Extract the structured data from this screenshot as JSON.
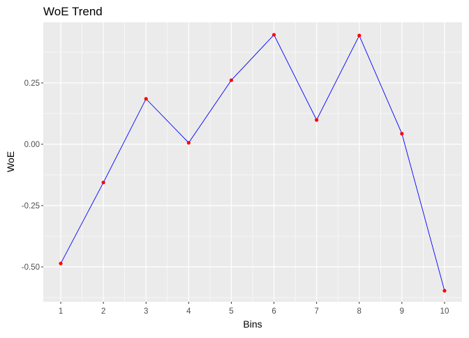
{
  "chart_data": {
    "type": "line",
    "title": "WoE Trend",
    "xlabel": "Bins",
    "ylabel": "WoE",
    "x": [
      1,
      2,
      3,
      4,
      5,
      6,
      7,
      8,
      9,
      10
    ],
    "x_tick_labels": [
      "1",
      "2",
      "3",
      "4",
      "5",
      "6",
      "7",
      "8",
      "9",
      "10"
    ],
    "y_ticks": [
      0.25,
      0.0,
      -0.25,
      -0.5
    ],
    "y_tick_labels": [
      "0.25",
      "0.00",
      "-0.25",
      "-0.50"
    ],
    "series": [
      {
        "values": [
          -0.486,
          -0.156,
          0.185,
          0.006,
          0.261,
          0.446,
          0.099,
          0.443,
          0.043,
          -0.597
        ]
      }
    ],
    "xlim": [
      0.59,
      10.41
    ],
    "ylim": [
      -0.642,
      0.497
    ],
    "grid": true,
    "line_color": "#0000ff",
    "point_color": "#ff0000",
    "panel_background": "#ebebeb"
  }
}
